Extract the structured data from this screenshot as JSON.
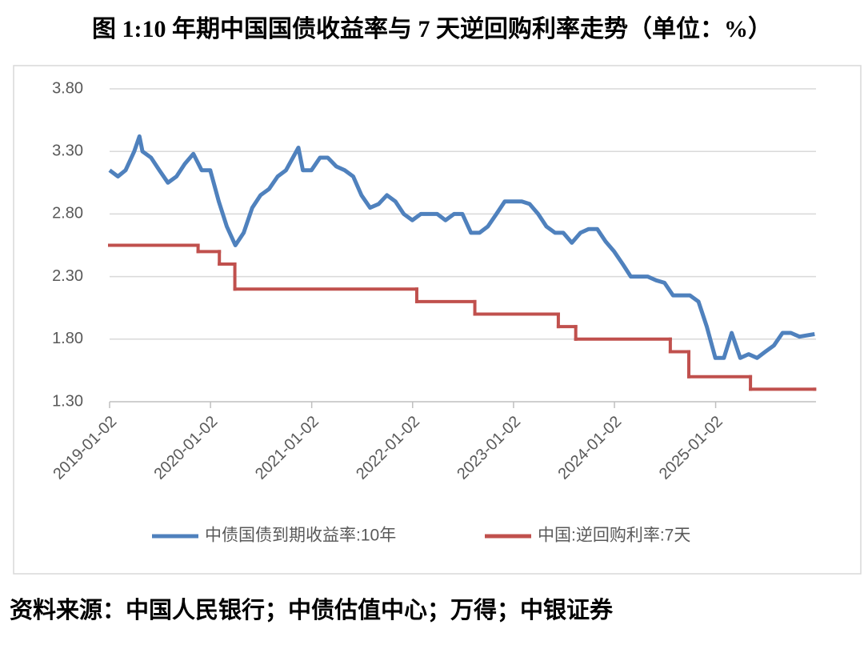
{
  "chart_data": {
    "type": "line",
    "title": "图 1:10 年期中国国债收益率与 7 天逆回购利率走势（单位：%）",
    "source": "资料来源：中国人民银行；中债估值中心；万得；中银证券",
    "xlim": [
      "2019-01-02",
      "2025-12-31"
    ],
    "xticks": [
      "2019-01-02",
      "2020-01-02",
      "2021-01-02",
      "2022-01-02",
      "2023-01-02",
      "2024-01-02",
      "2025-01-02"
    ],
    "ylim": [
      1.3,
      3.8
    ],
    "yticks": [
      {
        "value": 1.3,
        "label": "1.30"
      },
      {
        "value": 1.8,
        "label": "1.80"
      },
      {
        "value": 2.3,
        "label": "2.30"
      },
      {
        "value": 2.8,
        "label": "2.80"
      },
      {
        "value": 3.3,
        "label": "3.30"
      },
      {
        "value": 3.8,
        "label": "3.80"
      }
    ],
    "grid": true,
    "legend": "bottom",
    "series": [
      {
        "name": "中债国债到期收益率:10年",
        "color": "#4f81bd",
        "step": false,
        "x": [
          "2019-01-02",
          "2019-02-01",
          "2019-03-01",
          "2019-04-01",
          "2019-04-20",
          "2019-05-01",
          "2019-06-01",
          "2019-07-01",
          "2019-08-01",
          "2019-09-01",
          "2019-10-01",
          "2019-11-01",
          "2019-12-01",
          "2020-01-01",
          "2020-02-01",
          "2020-03-01",
          "2020-04-01",
          "2020-05-01",
          "2020-06-01",
          "2020-07-01",
          "2020-08-01",
          "2020-09-01",
          "2020-10-01",
          "2020-11-15",
          "2020-12-01",
          "2021-01-01",
          "2021-02-01",
          "2021-03-01",
          "2021-04-01",
          "2021-05-01",
          "2021-06-01",
          "2021-07-01",
          "2021-08-01",
          "2021-09-01",
          "2021-10-01",
          "2021-11-01",
          "2021-12-01",
          "2022-01-01",
          "2022-02-01",
          "2022-03-01",
          "2022-04-01",
          "2022-05-01",
          "2022-06-01",
          "2022-07-01",
          "2022-08-01",
          "2022-09-01",
          "2022-10-01",
          "2022-11-01",
          "2022-12-01",
          "2023-01-01",
          "2023-02-01",
          "2023-03-01",
          "2023-04-01",
          "2023-05-01",
          "2023-06-01",
          "2023-07-01",
          "2023-08-01",
          "2023-09-01",
          "2023-10-01",
          "2023-11-01",
          "2023-12-01",
          "2024-01-01",
          "2024-02-01",
          "2024-03-01",
          "2024-04-01",
          "2024-05-01",
          "2024-06-01",
          "2024-07-01",
          "2024-08-01",
          "2024-09-01",
          "2024-10-01",
          "2024-11-01",
          "2024-12-01",
          "2025-01-01",
          "2025-02-01",
          "2025-03-01",
          "2025-04-01",
          "2025-05-01",
          "2025-06-01",
          "2025-07-01",
          "2025-08-01",
          "2025-09-01",
          "2025-10-01",
          "2025-11-01",
          "2025-12-26"
        ],
        "values": [
          3.15,
          3.1,
          3.15,
          3.3,
          3.42,
          3.3,
          3.25,
          3.15,
          3.05,
          3.1,
          3.2,
          3.28,
          3.15,
          3.15,
          2.9,
          2.7,
          2.55,
          2.65,
          2.85,
          2.95,
          3.0,
          3.1,
          3.15,
          3.33,
          3.15,
          3.15,
          3.25,
          3.25,
          3.18,
          3.15,
          3.1,
          2.95,
          2.85,
          2.88,
          2.95,
          2.9,
          2.8,
          2.75,
          2.8,
          2.8,
          2.8,
          2.75,
          2.8,
          2.8,
          2.65,
          2.65,
          2.7,
          2.8,
          2.9,
          2.9,
          2.9,
          2.88,
          2.8,
          2.7,
          2.65,
          2.65,
          2.57,
          2.65,
          2.68,
          2.68,
          2.58,
          2.5,
          2.4,
          2.3,
          2.3,
          2.3,
          2.27,
          2.25,
          2.15,
          2.15,
          2.15,
          2.1,
          1.9,
          1.65,
          1.65,
          1.85,
          1.65,
          1.68,
          1.65,
          1.7,
          1.75,
          1.85,
          1.85,
          1.82,
          1.84
        ]
      },
      {
        "name": "中国:逆回购利率:7天",
        "color": "#c0504d",
        "step": true,
        "x": [
          "2019-01-02",
          "2019-11-18",
          "2020-02-03",
          "2020-03-30",
          "2022-01-17",
          "2022-08-15",
          "2023-06-13",
          "2023-08-15",
          "2024-07-22",
          "2024-09-27",
          "2025-05-08",
          "2025-12-26"
        ],
        "values": [
          2.55,
          2.5,
          2.4,
          2.2,
          2.1,
          2.0,
          1.9,
          1.8,
          1.7,
          1.5,
          1.4,
          1.4
        ]
      }
    ]
  }
}
